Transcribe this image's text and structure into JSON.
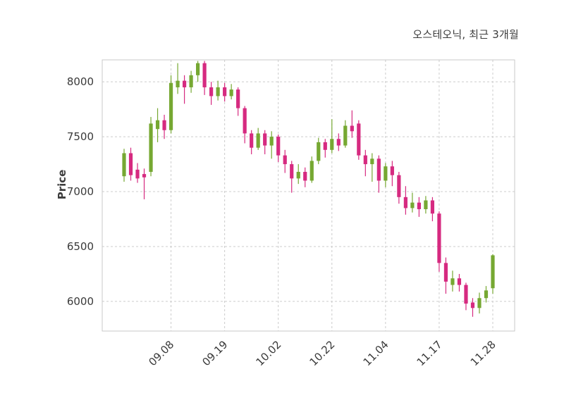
{
  "chart_data": {
    "type": "candlestick",
    "title": "오스테오닉, 최근 3개월",
    "ylabel": "Price",
    "y_ticks": [
      6000,
      6500,
      7000,
      7500,
      8000
    ],
    "y_range": [
      5730,
      8200
    ],
    "x_tick_labels": [
      "09.08",
      "09.19",
      "10.02",
      "10.22",
      "11.04",
      "11.17",
      "11.28"
    ],
    "x_tick_indices": [
      7,
      15,
      23,
      31,
      39,
      47,
      55
    ],
    "up_color": "#76a832",
    "down_color": "#d62a80",
    "grid": true,
    "legend": "none",
    "ohlc_format": [
      "open",
      "high",
      "low",
      "close"
    ],
    "ohlc": [
      [
        7140,
        7390,
        7090,
        7350
      ],
      [
        7350,
        7400,
        7100,
        7150
      ],
      [
        7200,
        7260,
        7080,
        7120
      ],
      [
        7160,
        7210,
        6930,
        7130
      ],
      [
        7180,
        7680,
        7140,
        7620
      ],
      [
        7570,
        7760,
        7450,
        7650
      ],
      [
        7650,
        7700,
        7480,
        7560
      ],
      [
        7560,
        8060,
        7530,
        7990
      ],
      [
        7950,
        8170,
        7890,
        8010
      ],
      [
        8010,
        8060,
        7800,
        7950
      ],
      [
        7950,
        8100,
        7900,
        8060
      ],
      [
        8060,
        8190,
        8000,
        8170
      ],
      [
        8170,
        8190,
        7880,
        7950
      ],
      [
        7950,
        8000,
        7790,
        7870
      ],
      [
        7870,
        8010,
        7830,
        7950
      ],
      [
        7950,
        7990,
        7820,
        7870
      ],
      [
        7870,
        7980,
        7840,
        7930
      ],
      [
        7930,
        7950,
        7690,
        7760
      ],
      [
        7760,
        7780,
        7440,
        7530
      ],
      [
        7530,
        7560,
        7340,
        7400
      ],
      [
        7400,
        7580,
        7380,
        7530
      ],
      [
        7530,
        7560,
        7340,
        7420
      ],
      [
        7420,
        7550,
        7300,
        7500
      ],
      [
        7500,
        7520,
        7270,
        7330
      ],
      [
        7330,
        7380,
        7170,
        7250
      ],
      [
        7250,
        7280,
        6990,
        7120
      ],
      [
        7120,
        7250,
        7070,
        7180
      ],
      [
        7180,
        7220,
        7040,
        7100
      ],
      [
        7100,
        7320,
        7080,
        7280
      ],
      [
        7280,
        7490,
        7250,
        7450
      ],
      [
        7450,
        7480,
        7310,
        7380
      ],
      [
        7380,
        7660,
        7350,
        7480
      ],
      [
        7480,
        7530,
        7370,
        7420
      ],
      [
        7420,
        7650,
        7400,
        7600
      ],
      [
        7600,
        7740,
        7490,
        7550
      ],
      [
        7620,
        7650,
        7290,
        7330
      ],
      [
        7330,
        7380,
        7140,
        7250
      ],
      [
        7250,
        7350,
        7090,
        7300
      ],
      [
        7300,
        7330,
        6990,
        7100
      ],
      [
        7100,
        7260,
        7040,
        7230
      ],
      [
        7230,
        7280,
        7050,
        7150
      ],
      [
        7150,
        7180,
        6890,
        6950
      ],
      [
        6950,
        7050,
        6790,
        6850
      ],
      [
        6850,
        6990,
        6810,
        6900
      ],
      [
        6900,
        6950,
        6770,
        6840
      ],
      [
        6840,
        6960,
        6800,
        6920
      ],
      [
        6920,
        6950,
        6730,
        6800
      ],
      [
        6800,
        6820,
        6270,
        6350
      ],
      [
        6350,
        6400,
        6070,
        6180
      ],
      [
        6150,
        6280,
        6090,
        6210
      ],
      [
        6210,
        6250,
        6090,
        6150
      ],
      [
        6150,
        6170,
        5920,
        5980
      ],
      [
        5990,
        6030,
        5860,
        5940
      ],
      [
        5940,
        6080,
        5890,
        6030
      ],
      [
        6030,
        6140,
        5990,
        6100
      ],
      [
        6120,
        6430,
        6070,
        6420
      ]
    ]
  }
}
